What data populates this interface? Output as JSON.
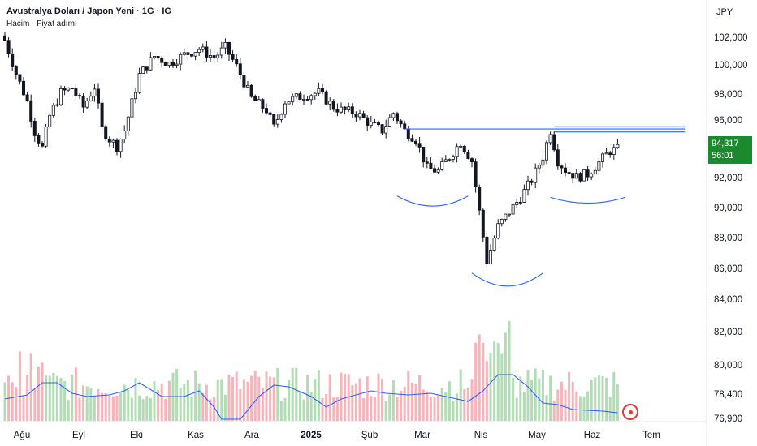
{
  "header": {
    "title": "Avustralya Doları / Japon Yeni · 1G · IG",
    "subtitle": "Hacim · Fiyat adımı",
    "currency": "JPY"
  },
  "last_price": {
    "value": "94,317",
    "countdown": "56:01"
  },
  "colors": {
    "candle": "#131722",
    "line": "#2962ff",
    "volume_up": "#a5d6a7",
    "volume_down": "#f4a6ae",
    "volume_ma": "#2962ff",
    "price_badge": "#1b8a2e",
    "live_marker": "#e53935"
  },
  "chart_data": {
    "type": "candlestick",
    "x_axis": {
      "labels": [
        "Ağu",
        "Eyl",
        "Eki",
        "Kas",
        "Ara",
        "2025",
        "Şub",
        "Mar",
        "Nis",
        "May",
        "Haz",
        "Tem"
      ],
      "bold_labels": [
        "2025"
      ]
    },
    "y_axis": {
      "ticks": [
        "102,000",
        "100,000",
        "98,000",
        "96,000",
        "94,000",
        "92,000",
        "90,000",
        "88,000",
        "86,000",
        "84,000",
        "82,000",
        "80,000",
        "78,400",
        "76,900"
      ],
      "price_range": [
        84,
        103.4
      ]
    },
    "close_path": [
      [
        0,
        101.8
      ],
      [
        3,
        99.5
      ],
      [
        6,
        97.6
      ],
      [
        8,
        95.5
      ],
      [
        10,
        94.4
      ],
      [
        12,
        96.6
      ],
      [
        15,
        98.2
      ],
      [
        18,
        98.5
      ],
      [
        21,
        97.2
      ],
      [
        24,
        98.6
      ],
      [
        26,
        95.7
      ],
      [
        28,
        95.0
      ],
      [
        30,
        94.5
      ],
      [
        32,
        95.6
      ],
      [
        36,
        99.4
      ],
      [
        40,
        100.7
      ],
      [
        44,
        100.2
      ],
      [
        48,
        100.8
      ],
      [
        52,
        101.2
      ],
      [
        56,
        100.6
      ],
      [
        59,
        101.3
      ],
      [
        62,
        100.0
      ],
      [
        66,
        97.8
      ],
      [
        70,
        97.0
      ],
      [
        72,
        95.8
      ],
      [
        75,
        97.6
      ],
      [
        80,
        98.0
      ],
      [
        84,
        98.2
      ],
      [
        88,
        97.2
      ],
      [
        90,
        97.0
      ],
      [
        94,
        96.8
      ],
      [
        98,
        96.0
      ],
      [
        101,
        95.6
      ],
      [
        104,
        96.8
      ],
      [
        107,
        95.6
      ],
      [
        110,
        95.0
      ],
      [
        113,
        93.0
      ],
      [
        116,
        92.8
      ],
      [
        119,
        93.8
      ],
      [
        122,
        94.8
      ],
      [
        125,
        93.5
      ],
      [
        127,
        90.0
      ],
      [
        129,
        86.6
      ],
      [
        132,
        89.0
      ],
      [
        135,
        90.0
      ],
      [
        138,
        91.0
      ],
      [
        141,
        92.2
      ],
      [
        144,
        93.8
      ],
      [
        146,
        95.6
      ],
      [
        148,
        93.5
      ],
      [
        150,
        92.9
      ],
      [
        153,
        92.4
      ],
      [
        156,
        92.6
      ],
      [
        159,
        93.4
      ],
      [
        162,
        94.2
      ],
      [
        164,
        94.3
      ]
    ],
    "annotations": {
      "resistance_levels": [
        95.7,
        95.85,
        95.5
      ],
      "curves": [
        {
          "name": "left-shoulder",
          "from": [
            105,
            91.1
          ],
          "to": [
            124,
            91.1
          ],
          "bottom": 90.4
        },
        {
          "name": "head",
          "from": [
            125,
            85.8
          ],
          "to": [
            144,
            85.8
          ],
          "bottom": 84.9
        },
        {
          "name": "right-shoulder",
          "from": [
            146,
            91.0
          ],
          "to": [
            166,
            91.0
          ],
          "bottom": 90.6
        }
      ]
    },
    "volume": {
      "ma_path": [
        [
          0,
          0.25
        ],
        [
          6,
          0.3
        ],
        [
          10,
          0.45
        ],
        [
          14,
          0.45
        ],
        [
          18,
          0.32
        ],
        [
          22,
          0.28
        ],
        [
          28,
          0.3
        ],
        [
          32,
          0.35
        ],
        [
          36,
          0.45
        ],
        [
          42,
          0.28
        ],
        [
          48,
          0.28
        ],
        [
          52,
          0.35
        ],
        [
          56,
          0.15
        ],
        [
          58,
          0.0
        ],
        [
          63,
          0.0
        ],
        [
          68,
          0.28
        ],
        [
          72,
          0.42
        ],
        [
          76,
          0.4
        ],
        [
          82,
          0.28
        ],
        [
          86,
          0.15
        ],
        [
          90,
          0.25
        ],
        [
          94,
          0.3
        ],
        [
          98,
          0.35
        ],
        [
          102,
          0.32
        ],
        [
          108,
          0.3
        ],
        [
          114,
          0.32
        ],
        [
          118,
          0.28
        ],
        [
          124,
          0.22
        ],
        [
          128,
          0.35
        ],
        [
          132,
          0.55
        ],
        [
          136,
          0.55
        ],
        [
          140,
          0.4
        ],
        [
          144,
          0.2
        ],
        [
          148,
          0.18
        ],
        [
          152,
          0.12
        ],
        [
          160,
          0.1
        ],
        [
          164,
          0.08
        ]
      ]
    }
  }
}
